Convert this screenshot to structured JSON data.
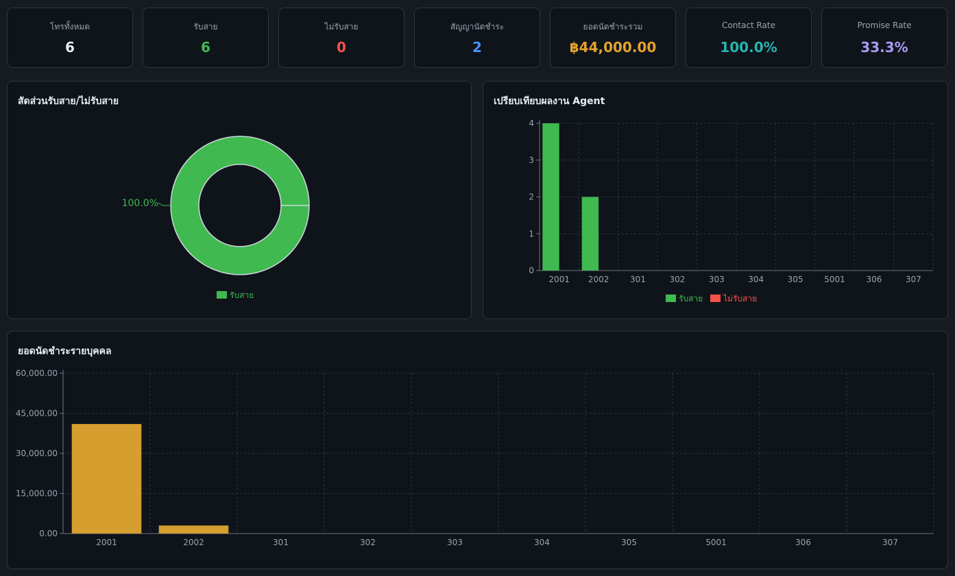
{
  "kpis": [
    {
      "label": "โทรทั้งหมด",
      "value": "6",
      "color": "#e6edf3"
    },
    {
      "label": "รับสาย",
      "value": "6",
      "color": "#3fb950"
    },
    {
      "label": "ไม่รับสาย",
      "value": "0",
      "color": "#f85149"
    },
    {
      "label": "สัญญานัดชำระ",
      "value": "2",
      "color": "#4493f8"
    },
    {
      "label": "ยอดนัดชำระรวม",
      "value": "฿44,000.00",
      "color": "#e3a32c"
    },
    {
      "label": "Contact Rate",
      "value": "100.0%",
      "color": "#26b5b0"
    },
    {
      "label": "Promise Rate",
      "value": "33.3%",
      "color": "#a99bf5"
    }
  ],
  "panels": {
    "pie_title": "สัดส่วนรับสาย/ไม่รับสาย",
    "agent_title": "เปรียบเทียบผลงาน Agent",
    "promise_title": "ยอดนัดชำระรายบุคคล"
  },
  "colors": {
    "answered": "#3fb950",
    "unanswered": "#f85149",
    "promise": "#d69e2e",
    "grid": "#30363d",
    "axis": "#6e7681"
  },
  "chart_data": [
    {
      "type": "pie",
      "donut": true,
      "labels": [
        "รับสาย"
      ],
      "values": [
        100
      ],
      "slice_labels": [
        "100.0%"
      ],
      "legend": [
        "รับสาย"
      ],
      "legend_position": "bottom"
    },
    {
      "type": "bar",
      "categories": [
        "2001",
        "2002",
        "301",
        "302",
        "303",
        "304",
        "305",
        "5001",
        "306",
        "307"
      ],
      "series": [
        {
          "name": "รับสาย",
          "values": [
            4,
            2,
            0,
            0,
            0,
            0,
            0,
            0,
            0,
            0
          ]
        },
        {
          "name": "ไม่รับสาย",
          "values": [
            0,
            0,
            0,
            0,
            0,
            0,
            0,
            0,
            0,
            0
          ]
        }
      ],
      "yticks": [
        "0",
        "1",
        "2",
        "3",
        "4"
      ],
      "ylim": [
        0,
        4
      ],
      "grid": true,
      "legend_position": "bottom"
    },
    {
      "type": "bar",
      "categories": [
        "2001",
        "2002",
        "301",
        "302",
        "303",
        "304",
        "305",
        "5001",
        "306",
        "307"
      ],
      "values": [
        41000,
        3000,
        0,
        0,
        0,
        0,
        0,
        0,
        0,
        0
      ],
      "yticks": [
        "0.00",
        "15,000.00",
        "30,000.00",
        "45,000.00",
        "60,000.00"
      ],
      "ylim": [
        0,
        60000
      ],
      "grid": true
    }
  ]
}
